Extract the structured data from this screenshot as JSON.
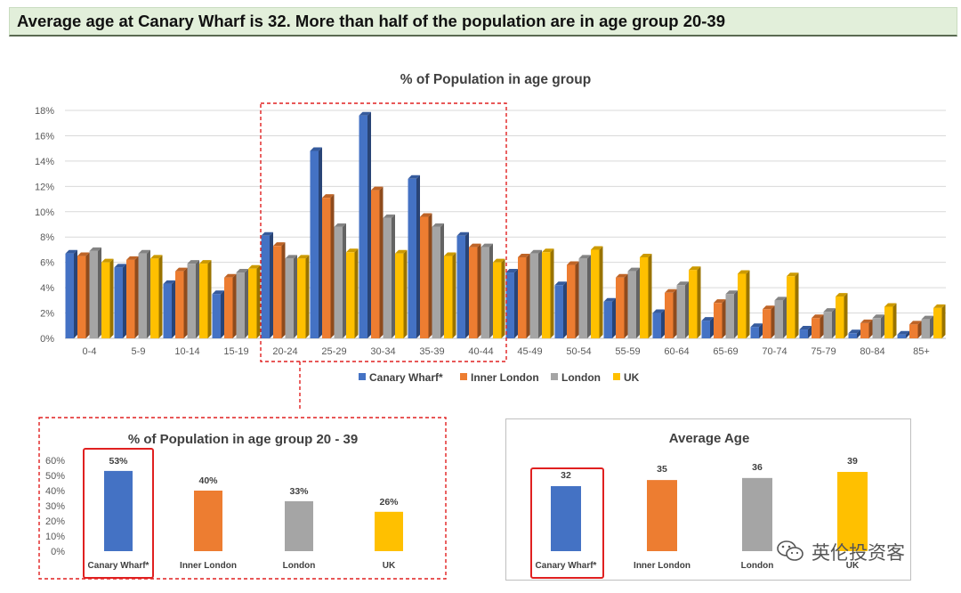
{
  "headline": "Average age at Canary Wharf is 32. More than half of the population are in age group 20-39",
  "watermark": "英伦投资客",
  "colors": {
    "canary": "#4472c4",
    "inner": "#ed7d31",
    "london": "#a5a5a5",
    "uk": "#ffc000",
    "highlight": "#e02020"
  },
  "chart_data": [
    {
      "type": "bar",
      "title": "% of Population in age group",
      "xlabel": "",
      "ylabel": "",
      "ylim": [
        0,
        18
      ],
      "yticks": [
        "0%",
        "2%",
        "4%",
        "6%",
        "8%",
        "10%",
        "12%",
        "14%",
        "16%",
        "18%"
      ],
      "categories": [
        "0-4",
        "5-9",
        "10-14",
        "15-19",
        "20-24",
        "25-29",
        "30-34",
        "35-39",
        "40-44",
        "45-49",
        "50-54",
        "55-59",
        "60-64",
        "65-69",
        "70-74",
        "75-79",
        "80-84",
        "85+"
      ],
      "series": [
        {
          "name": "Canary Wharf*",
          "values": [
            6.7,
            5.6,
            4.3,
            3.5,
            8.1,
            14.8,
            17.6,
            12.6,
            8.1,
            5.2,
            4.2,
            2.9,
            2.0,
            1.4,
            0.9,
            0.7,
            0.4,
            0.3
          ]
        },
        {
          "name": "Inner London",
          "values": [
            6.5,
            6.2,
            5.3,
            4.8,
            7.3,
            11.1,
            11.7,
            9.6,
            7.2,
            6.4,
            5.8,
            4.8,
            3.6,
            2.8,
            2.3,
            1.6,
            1.2,
            1.1
          ]
        },
        {
          "name": "London",
          "values": [
            6.9,
            6.7,
            5.9,
            5.2,
            6.3,
            8.8,
            9.5,
            8.8,
            7.2,
            6.7,
            6.3,
            5.3,
            4.2,
            3.5,
            3.0,
            2.1,
            1.6,
            1.5
          ]
        },
        {
          "name": "UK",
          "values": [
            6.0,
            6.3,
            5.9,
            5.5,
            6.3,
            6.8,
            6.7,
            6.5,
            6.0,
            6.8,
            7.0,
            6.4,
            5.4,
            5.1,
            4.9,
            3.3,
            2.5,
            2.4
          ]
        }
      ],
      "legend": "bottom",
      "highlight": "20-24 to 40-44"
    },
    {
      "type": "bar",
      "title": "% of Population in age group 20 - 39",
      "ylim": [
        0,
        60
      ],
      "yticks": [
        "0%",
        "10%",
        "20%",
        "30%",
        "40%",
        "50%",
        "60%"
      ],
      "categories": [
        "Canary Wharf*",
        "Inner London",
        "London",
        "UK"
      ],
      "values": [
        53,
        40,
        33,
        26
      ],
      "labels": [
        "53%",
        "40%",
        "33%",
        "26%"
      ],
      "highlight": "Canary Wharf*"
    },
    {
      "type": "bar",
      "title": "Average Age",
      "ylim": [
        0,
        45
      ],
      "categories": [
        "Canary Wharf*",
        "Inner London",
        "London",
        "UK"
      ],
      "values": [
        32,
        35,
        36,
        39
      ],
      "labels": [
        "32",
        "35",
        "36",
        "39"
      ],
      "highlight": "Canary Wharf*"
    }
  ]
}
